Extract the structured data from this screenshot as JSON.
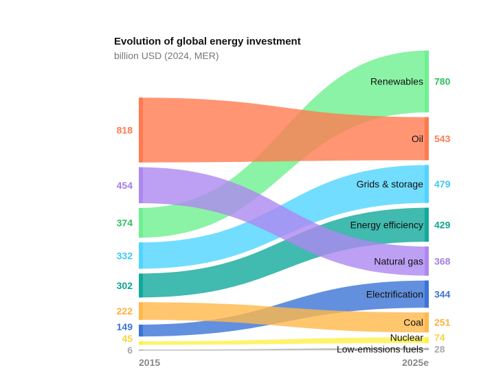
{
  "title": "Evolution of global energy investment",
  "subtitle": "billion USD (2024, MER)",
  "chart_data": {
    "type": "sankey-slope",
    "x": [
      "2015",
      "2025e"
    ],
    "series": [
      {
        "name": "Renewables",
        "values": [
          374,
          780
        ],
        "color": "#6ef08f",
        "label_color": "#2fbf5f"
      },
      {
        "name": "Oil",
        "values": [
          818,
          543
        ],
        "color": "#ff7a50",
        "label_color": "#ff7a50"
      },
      {
        "name": "Grids & storage",
        "values": [
          332,
          479
        ],
        "color": "#4fd4ff",
        "label_color": "#3cc8f5"
      },
      {
        "name": "Energy efficiency",
        "values": [
          302,
          429
        ],
        "color": "#12a99b",
        "label_color": "#0fa295"
      },
      {
        "name": "Natural gas",
        "values": [
          454,
          368
        ],
        "color": "#ad88f0",
        "label_color": "#a47de8"
      },
      {
        "name": "Electrification",
        "values": [
          149,
          344
        ],
        "color": "#3b74d6",
        "label_color": "#3b74d6"
      },
      {
        "name": "Coal",
        "values": [
          222,
          251
        ],
        "color": "#ffb84a",
        "label_color": "#ffb03a"
      },
      {
        "name": "Nuclear",
        "values": [
          45,
          74
        ],
        "color": "#fff04a",
        "label_color": "#f5d53a"
      },
      {
        "name": "Low-emissions fuels",
        "values": [
          6,
          28
        ],
        "color": "#b0b0b0",
        "label_color": "#aaaaaa"
      }
    ]
  }
}
